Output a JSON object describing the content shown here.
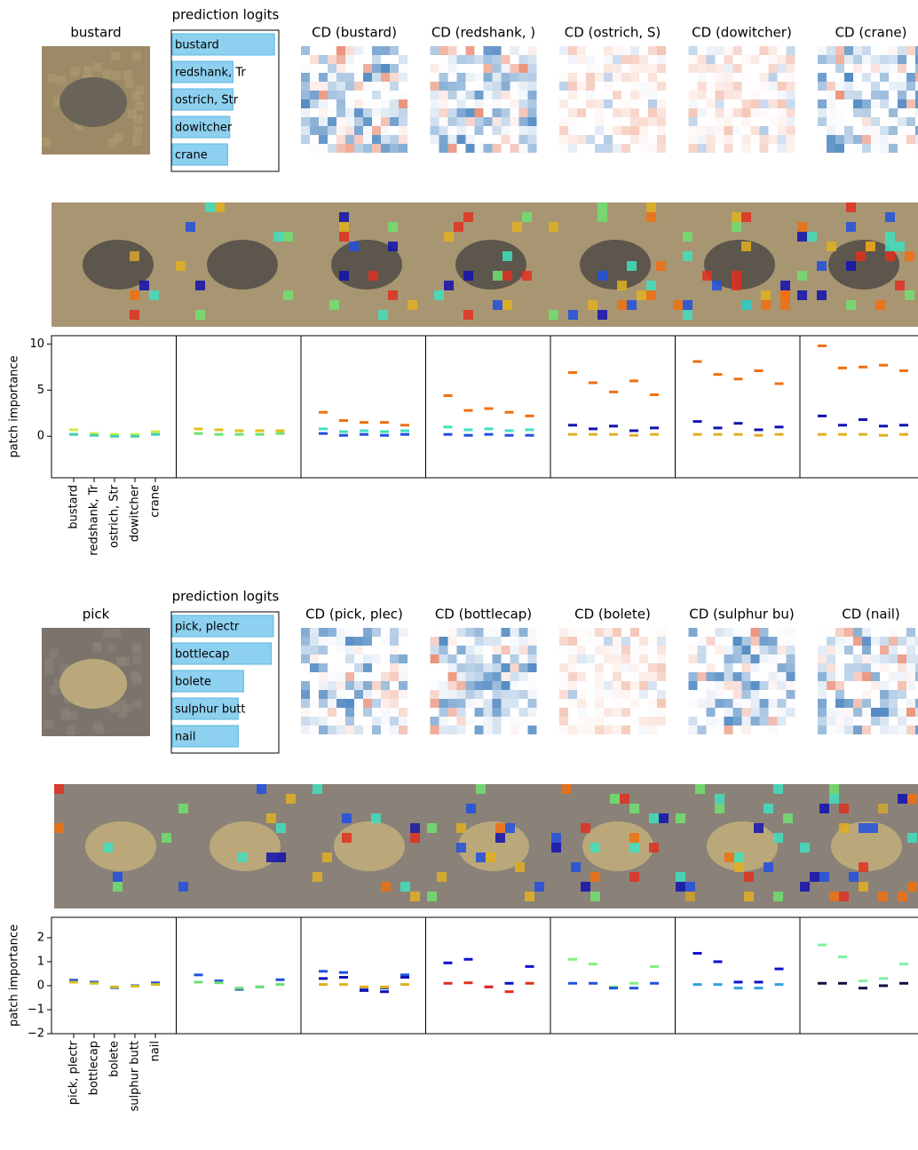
{
  "panels": [
    {
      "image_label": "bustard",
      "logits": {
        "title": "prediction logits",
        "categories": [
          "bustard",
          "redshank, Tr",
          "ostrich, Str",
          "dowitcher",
          "crane"
        ],
        "values": [
          0.96,
          0.57,
          0.57,
          0.54,
          0.52
        ],
        "xlim": [
          0,
          1
        ],
        "color": "#8ed0ef"
      },
      "cd_maps": [
        {
          "title": "CD (bustard)",
          "tint": "blue"
        },
        {
          "title": "CD (redshank, )",
          "tint": "blue"
        },
        {
          "title": "CD (ostrich, S)",
          "tint": "red"
        },
        {
          "title": "CD (dowitcher)",
          "tint": "red"
        },
        {
          "title": "CD (crane)",
          "tint": "blue"
        }
      ],
      "importance": {
        "type": "scatter",
        "ylabel": "patch importance",
        "ylim": [
          -4.5,
          10.9
        ],
        "yticks": [
          0,
          5,
          10
        ],
        "subplots": [
          {
            "series": [
              {
                "color": "#c8f040",
                "values": [
                  0.7,
                  0.3,
                  0.2,
                  0.2,
                  0.5
                ]
              },
              {
                "color": "#40d0b0",
                "values": [
                  0.2,
                  0.1,
                  0.0,
                  0.0,
                  0.2
                ]
              }
            ]
          },
          {
            "series": [
              {
                "color": "#e0c020",
                "values": [
                  0.8,
                  0.7,
                  0.6,
                  0.6,
                  0.6
                ]
              },
              {
                "color": "#70e070",
                "values": [
                  0.3,
                  0.2,
                  0.2,
                  0.2,
                  0.3
                ]
              }
            ]
          },
          {
            "series": [
              {
                "color": "#f07010",
                "values": [
                  2.6,
                  1.7,
                  1.5,
                  1.5,
                  1.2
                ]
              },
              {
                "color": "#40e0c0",
                "values": [
                  0.8,
                  0.5,
                  0.6,
                  0.5,
                  0.6
                ]
              },
              {
                "color": "#2050e0",
                "values": [
                  0.3,
                  0.1,
                  0.2,
                  0.1,
                  0.2
                ]
              }
            ]
          },
          {
            "series": [
              {
                "color": "#f07010",
                "values": [
                  4.4,
                  2.8,
                  3.0,
                  2.6,
                  2.2
                ]
              },
              {
                "color": "#40e0c0",
                "values": [
                  1.0,
                  0.7,
                  0.8,
                  0.6,
                  0.7
                ]
              },
              {
                "color": "#2050e0",
                "values": [
                  0.2,
                  0.1,
                  0.2,
                  0.1,
                  0.1
                ]
              }
            ]
          },
          {
            "series": [
              {
                "color": "#f07010",
                "values": [
                  6.9,
                  5.8,
                  4.8,
                  6.0,
                  4.5
                ]
              },
              {
                "color": "#1010b0",
                "values": [
                  1.2,
                  0.8,
                  1.1,
                  0.6,
                  0.9
                ]
              },
              {
                "color": "#e0b020",
                "values": [
                  0.2,
                  0.2,
                  0.2,
                  0.1,
                  0.2
                ]
              }
            ]
          },
          {
            "series": [
              {
                "color": "#f07010",
                "values": [
                  8.1,
                  6.7,
                  6.2,
                  7.1,
                  5.7
                ]
              },
              {
                "color": "#1010b0",
                "values": [
                  1.6,
                  0.9,
                  1.4,
                  0.7,
                  1.0
                ]
              },
              {
                "color": "#e0b020",
                "values": [
                  0.2,
                  0.2,
                  0.2,
                  0.1,
                  0.2
                ]
              }
            ]
          },
          {
            "series": [
              {
                "color": "#f07010",
                "values": [
                  9.8,
                  7.4,
                  7.5,
                  7.7,
                  7.1
                ]
              },
              {
                "color": "#1010b0",
                "values": [
                  2.2,
                  1.2,
                  1.8,
                  1.1,
                  1.2
                ]
              },
              {
                "color": "#e0b020",
                "values": [
                  0.2,
                  0.2,
                  0.2,
                  0.1,
                  0.2
                ]
              }
            ]
          }
        ]
      }
    },
    {
      "image_label": "pick",
      "logits": {
        "title": "prediction logits",
        "categories": [
          "pick, plectr",
          "bottlecap",
          "bolete",
          "sulphur butt",
          "nail"
        ],
        "values": [
          0.95,
          0.93,
          0.67,
          0.62,
          0.62
        ],
        "xlim": [
          0,
          1
        ],
        "color": "#8ed0ef"
      },
      "cd_maps": [
        {
          "title": "CD (pick, plec)",
          "tint": "blue"
        },
        {
          "title": "CD (bottlecap)",
          "tint": "blue"
        },
        {
          "title": "CD (bolete)",
          "tint": "red"
        },
        {
          "title": "CD (sulphur bu)",
          "tint": "blue"
        },
        {
          "title": "CD (nail)",
          "tint": "blue"
        }
      ],
      "importance": {
        "type": "scatter",
        "ylabel": "patch importance",
        "ylim": [
          -2,
          2.85
        ],
        "yticks": [
          {
            "value": -2,
            "label": "−2"
          },
          {
            "value": -1,
            "label": "−1"
          },
          0,
          1,
          2
        ],
        "subplots": [
          {
            "series": [
              {
                "color": "#2050e0",
                "values": [
                  0.23,
                  0.15,
                  -0.08,
                  0.0,
                  0.12
                ]
              },
              {
                "color": "#d0c020",
                "values": [
                  0.15,
                  0.1,
                  -0.05,
                  -0.02,
                  0.05
                ]
              }
            ]
          },
          {
            "series": [
              {
                "color": "#2050e0",
                "values": [
                  0.45,
                  0.2,
                  -0.15,
                  -0.05,
                  0.25
                ]
              },
              {
                "color": "#70e070",
                "values": [
                  0.15,
                  0.12,
                  -0.1,
                  -0.05,
                  0.05
                ]
              }
            ]
          },
          {
            "series": [
              {
                "color": "#2050e0",
                "values": [
                  0.6,
                  0.55,
                  -0.1,
                  -0.1,
                  0.45
                ]
              },
              {
                "color": "#1010b0",
                "values": [
                  0.3,
                  0.35,
                  -0.2,
                  -0.25,
                  0.35
                ]
              },
              {
                "color": "#e0b020",
                "values": [
                  0.05,
                  0.05,
                  -0.05,
                  -0.05,
                  0.05
                ]
              }
            ]
          },
          {
            "series": [
              {
                "color": "#1010d0",
                "values": [
                  0.95,
                  1.1,
                  -0.05,
                  0.1,
                  0.8
                ]
              },
              {
                "color": "#e03020",
                "values": [
                  0.1,
                  0.12,
                  -0.05,
                  -0.25,
                  0.1
                ]
              }
            ]
          },
          {
            "series": [
              {
                "color": "#80f080",
                "values": [
                  1.1,
                  0.9,
                  -0.05,
                  0.1,
                  0.8
                ]
              },
              {
                "color": "#2050e0",
                "values": [
                  0.1,
                  0.1,
                  -0.1,
                  -0.1,
                  0.1
                ]
              }
            ]
          },
          {
            "series": [
              {
                "color": "#1010d0",
                "values": [
                  1.35,
                  1.0,
                  0.15,
                  0.15,
                  0.7
                ]
              },
              {
                "color": "#30a0e0",
                "values": [
                  0.05,
                  0.05,
                  -0.1,
                  -0.1,
                  0.05
                ]
              }
            ]
          },
          {
            "series": [
              {
                "color": "#80f0a0",
                "values": [
                  1.7,
                  1.2,
                  0.2,
                  0.3,
                  0.9
                ]
              },
              {
                "color": "#101040",
                "values": [
                  0.1,
                  0.1,
                  -0.1,
                  0.0,
                  0.1
                ]
              }
            ]
          }
        ]
      }
    }
  ]
}
